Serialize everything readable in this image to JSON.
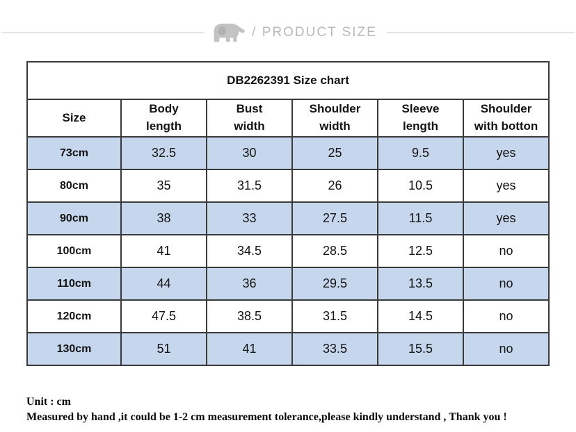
{
  "page_header": {
    "label": "/ PRODUCT SIZE"
  },
  "table": {
    "title_code": "DB2262391",
    "title_rest": " Size chart",
    "columns": [
      {
        "key": "size",
        "lines": [
          "Size"
        ]
      },
      {
        "key": "body-length",
        "lines": [
          "Body",
          "length"
        ]
      },
      {
        "key": "bust-width",
        "lines": [
          "Bust",
          "width"
        ]
      },
      {
        "key": "shoulder-width",
        "lines": [
          "Shoulder",
          "width"
        ]
      },
      {
        "key": "sleeve-length",
        "lines": [
          "Sleeve",
          "length"
        ]
      },
      {
        "key": "shoulder-with-botton",
        "lines": [
          "Shoulder",
          "with botton"
        ]
      }
    ],
    "rows": [
      [
        "73cm",
        "32.5",
        "30",
        "25",
        "9.5",
        "yes"
      ],
      [
        "80cm",
        "35",
        "31.5",
        "26",
        "10.5",
        "yes"
      ],
      [
        "90cm",
        "38",
        "33",
        "27.5",
        "11.5",
        "yes"
      ],
      [
        "100cm",
        "41",
        "34.5",
        "28.5",
        "12.5",
        "no"
      ],
      [
        "110cm",
        "44",
        "36",
        "29.5",
        "13.5",
        "no"
      ],
      [
        "120cm",
        "47.5",
        "38.5",
        "31.5",
        "14.5",
        "no"
      ],
      [
        "130cm",
        "51",
        "41",
        "33.5",
        "15.5",
        "no"
      ]
    ]
  },
  "footnotes": {
    "unit": "Unit : cm",
    "note": "Measured by hand ,it could be 1-2 cm measurement tolerance,please kindly understand , Thank you !"
  },
  "colors": {
    "title_row_bg": "#cdd9f1",
    "alt_row_bg": "#c6d6ec",
    "border": "#3a3a3a",
    "header_text": "#b9b9b9"
  },
  "chart_data": {
    "type": "table",
    "title": "DB2262391 Size chart",
    "columns": [
      "Size",
      "Body length",
      "Bust width",
      "Shoulder width",
      "Sleeve length",
      "Shoulder with botton"
    ],
    "rows": [
      [
        "73cm",
        "32.5",
        "30",
        "25",
        "9.5",
        "yes"
      ],
      [
        "80cm",
        "35",
        "31.5",
        "26",
        "10.5",
        "yes"
      ],
      [
        "90cm",
        "38",
        "33",
        "27.5",
        "11.5",
        "yes"
      ],
      [
        "100cm",
        "41",
        "34.5",
        "28.5",
        "12.5",
        "no"
      ],
      [
        "110cm",
        "44",
        "36",
        "29.5",
        "13.5",
        "no"
      ],
      [
        "120cm",
        "47.5",
        "38.5",
        "31.5",
        "14.5",
        "no"
      ],
      [
        "130cm",
        "51",
        "41",
        "33.5",
        "15.5",
        "no"
      ]
    ]
  }
}
